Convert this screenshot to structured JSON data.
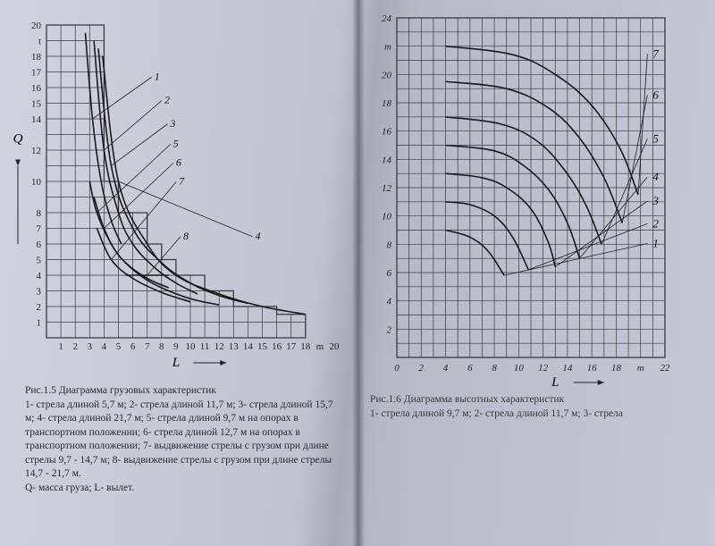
{
  "left_chart": {
    "type": "line-family",
    "title": "Рис.1.5 Диаграмма грузовых характеристик",
    "caption": "1- стрела длиной 5,7 м; 2- стрела длиной 11,7 м; 3- стрела длиной 15,7 м; 4- стрела длиной 21,7 м; 5- стрела длиной 9,7 м на опорах в транспортном положении; 6- стрела длиной 12,7 м на опорах в транспортном положении; 7- выдвижение стрелы с грузом при длине стрелы 9,7 - 14,7 м; 8- выдвижение стрелы с грузом при длине стрелы 14,7 - 21,7 м.",
    "footnote": "Q- масса груза;  L- вылет.",
    "xlabel": "L",
    "ylabel": "Q",
    "xlim": [
      0,
      20
    ],
    "ylim": [
      0,
      20
    ],
    "x_ticks": [
      1,
      2,
      3,
      4,
      5,
      6,
      7,
      8,
      9,
      10,
      11,
      12,
      13,
      14,
      15,
      16,
      17,
      18,
      "m",
      20
    ],
    "y_ticks": [
      1,
      2,
      3,
      4,
      5,
      6,
      7,
      8,
      10,
      12,
      14,
      15,
      16,
      17,
      18,
      "t",
      20
    ],
    "grid_color": "#3a3a3a",
    "grid_stroke": 0.7,
    "curve_color": "#1a1a1a",
    "curve_stroke": 1.6,
    "background": "transparent",
    "label_fontsize": 11,
    "series_labels": [
      "1",
      "2",
      "3",
      "4",
      "5",
      "6",
      "7",
      "8"
    ],
    "envelope": [
      [
        2.5,
        20
      ],
      [
        4,
        20
      ],
      [
        4,
        10
      ],
      [
        5,
        10
      ],
      [
        5,
        8
      ],
      [
        7,
        8
      ],
      [
        7,
        6
      ],
      [
        8,
        6
      ],
      [
        8,
        5
      ],
      [
        9,
        5
      ],
      [
        9,
        4
      ],
      [
        11,
        4
      ],
      [
        11,
        3
      ],
      [
        13,
        3
      ],
      [
        13,
        2
      ],
      [
        16,
        2
      ],
      [
        16,
        1.5
      ],
      [
        18,
        1.5
      ],
      [
        18,
        1
      ]
    ],
    "curves": {
      "1": [
        [
          2.7,
          19.5
        ],
        [
          3.2,
          14
        ],
        [
          3.8,
          10
        ],
        [
          4.5,
          7.5
        ],
        [
          5.2,
          6
        ]
      ],
      "2": [
        [
          3.3,
          19
        ],
        [
          4,
          12
        ],
        [
          5,
          8
        ],
        [
          6,
          6
        ],
        [
          7.5,
          4.5
        ],
        [
          9,
          3.5
        ],
        [
          10.5,
          2.8
        ]
      ],
      "3": [
        [
          3.6,
          18.5
        ],
        [
          4.5,
          11
        ],
        [
          6,
          7
        ],
        [
          8,
          4.8
        ],
        [
          10,
          3.5
        ],
        [
          12,
          2.7
        ],
        [
          14,
          2.2
        ]
      ],
      "4": [
        [
          3.9,
          18
        ],
        [
          5,
          10
        ],
        [
          7,
          6
        ],
        [
          9,
          4
        ],
        [
          12,
          2.8
        ],
        [
          15,
          2
        ],
        [
          18,
          1.5
        ]
      ],
      "5": [
        [
          3.0,
          10
        ],
        [
          3.5,
          8
        ],
        [
          4.5,
          6
        ],
        [
          5.5,
          4.8
        ],
        [
          7,
          3.8
        ],
        [
          8.5,
          3.2
        ]
      ],
      "6": [
        [
          3.3,
          9
        ],
        [
          4,
          7
        ],
        [
          5,
          5.3
        ],
        [
          6.5,
          4
        ],
        [
          8,
          3.2
        ],
        [
          10,
          2.5
        ],
        [
          12,
          2.1
        ]
      ],
      "7": [
        [
          3.5,
          7
        ],
        [
          4.5,
          5
        ],
        [
          6,
          3.8
        ],
        [
          8,
          2.9
        ],
        [
          10,
          2.3
        ]
      ],
      "8": [
        [
          5.5,
          4
        ],
        [
          7,
          4
        ],
        [
          8.5,
          4
        ]
      ]
    },
    "label_positions": {
      "1": [
        7.5,
        16.5
      ],
      "2": [
        8.2,
        15
      ],
      "3": [
        8.6,
        13.5
      ],
      "4": [
        14.5,
        6.3
      ],
      "5": [
        8.8,
        12.2
      ],
      "6": [
        9.0,
        11.0
      ],
      "7": [
        9.2,
        9.8
      ],
      "8": [
        9.5,
        6.3
      ]
    }
  },
  "right_chart": {
    "type": "line-family",
    "title": "Рис.1.6 Диаграмма высотных характеристик",
    "caption": "1- стрела длиной 9,7 м; 2- стрела длиной 11,7 м; 3- стрела",
    "xlabel": "L",
    "xlim": [
      0,
      22
    ],
    "ylim": [
      0,
      24
    ],
    "x_ticks": [
      0,
      2,
      4,
      6,
      8,
      10,
      12,
      14,
      16,
      18,
      "m",
      22
    ],
    "y_ticks": [
      2,
      4,
      6,
      8,
      10,
      12,
      14,
      16,
      18,
      20,
      "m",
      24
    ],
    "grid_color": "#3a3a3a",
    "grid_stroke": 0.7,
    "curve_color": "#1a1a1a",
    "curve_stroke": 1.6,
    "background": "transparent",
    "label_fontsize": 11,
    "series_labels": [
      "1",
      "2",
      "3",
      "4",
      "5",
      "6",
      "7"
    ],
    "curves": {
      "1": [
        [
          4,
          9
        ],
        [
          6,
          8.5
        ],
        [
          7.5,
          7.5
        ],
        [
          8.8,
          5.8
        ]
      ],
      "2": [
        [
          4,
          11
        ],
        [
          6,
          10.8
        ],
        [
          8,
          10
        ],
        [
          9.5,
          8.5
        ],
        [
          10.8,
          6.2
        ]
      ],
      "3": [
        [
          4,
          13
        ],
        [
          7,
          12.7
        ],
        [
          9,
          12
        ],
        [
          11,
          10.5
        ],
        [
          12.4,
          8.2
        ],
        [
          13,
          6.4
        ]
      ],
      "4": [
        [
          4,
          15
        ],
        [
          8,
          14.6
        ],
        [
          10.5,
          13.5
        ],
        [
          12.5,
          11.8
        ],
        [
          14,
          9.5
        ],
        [
          15,
          7
        ]
      ],
      "5": [
        [
          4,
          17
        ],
        [
          8.5,
          16.5
        ],
        [
          11.5,
          15.3
        ],
        [
          13.8,
          13.2
        ],
        [
          15.5,
          10.8
        ],
        [
          16.8,
          8
        ]
      ],
      "6": [
        [
          4,
          19.5
        ],
        [
          9,
          19
        ],
        [
          12.5,
          17.6
        ],
        [
          15,
          15.5
        ],
        [
          17,
          12.7
        ],
        [
          18.5,
          9.5
        ]
      ],
      "7": [
        [
          4,
          22
        ],
        [
          9.5,
          21.4
        ],
        [
          13,
          20
        ],
        [
          16,
          17.8
        ],
        [
          18.3,
          14.8
        ],
        [
          19.8,
          11.5
        ]
      ]
    },
    "label_positions": {
      "1": [
        21,
        7.8
      ],
      "2": [
        21,
        9.2
      ],
      "3": [
        21,
        10.8
      ],
      "4": [
        21,
        12.5
      ],
      "5": [
        21,
        15.2
      ],
      "6": [
        21,
        18.3
      ],
      "7": [
        21,
        21.2
      ]
    }
  }
}
